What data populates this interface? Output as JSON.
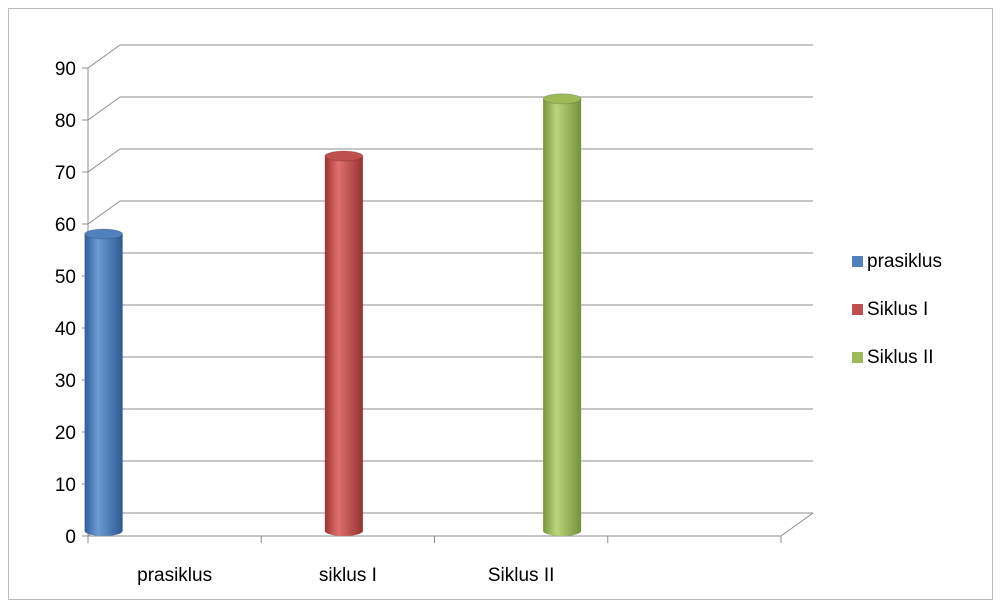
{
  "chart_data": {
    "type": "bar",
    "categories": [
      "prasiklus",
      "siklus I",
      "Siklus II"
    ],
    "series": [
      {
        "name": "prasiklus",
        "category": "prasiklus",
        "value": 57.5,
        "color": "#4f81bd"
      },
      {
        "name": "Siklus I",
        "category": "siklus I",
        "value": 72.5,
        "color": "#c0504d"
      },
      {
        "name": "Siklus II",
        "category": "Siklus II",
        "value": 83.5,
        "color": "#9bbb59"
      }
    ],
    "y_ticks": [
      "0",
      "10",
      "20",
      "30",
      "40",
      "50",
      "60",
      "70",
      "80",
      "90"
    ],
    "ylim": [
      0,
      90
    ],
    "grid": true,
    "legend_position": "right",
    "style": "3d-cylinder"
  }
}
